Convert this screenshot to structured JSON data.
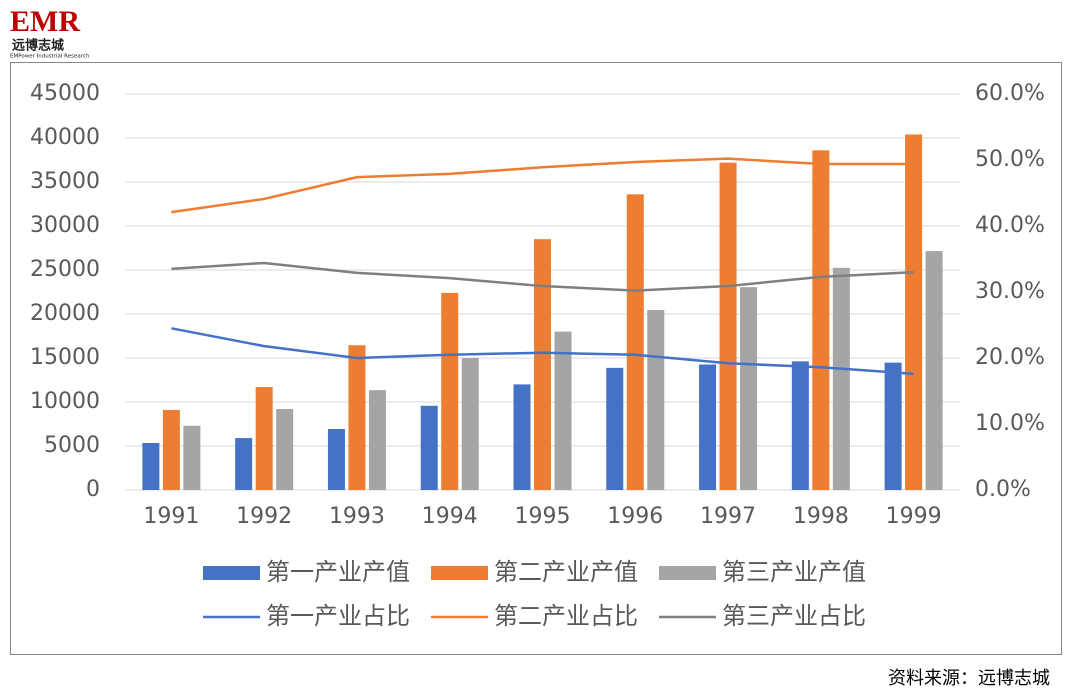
{
  "logo": {
    "brand": "EMR",
    "name": "远博志城",
    "tagline": "EMPower Industrial Research"
  },
  "source": "资料来源：远博志城",
  "chart_data": {
    "type": "bar-line",
    "categories": [
      "1991",
      "1992",
      "1993",
      "1994",
      "1995",
      "1996",
      "1997",
      "1998",
      "1999"
    ],
    "series": [
      {
        "name": "第一产业产值",
        "type": "bar",
        "color": "#4472c4",
        "values": [
          5340,
          5900,
          6930,
          9570,
          12000,
          13880,
          14260,
          14620,
          14470
        ]
      },
      {
        "name": "第二产业产值",
        "type": "bar",
        "color": "#ed7d31",
        "values": [
          9100,
          11700,
          16450,
          22400,
          28500,
          33600,
          37200,
          38600,
          40400
        ]
      },
      {
        "name": "第三产业产值",
        "type": "bar",
        "color": "#a5a5a5",
        "values": [
          7300,
          9200,
          11350,
          15000,
          18000,
          20450,
          23050,
          25250,
          27150
        ]
      },
      {
        "name": "第一产业占比",
        "type": "line",
        "axis": "y2",
        "color": "#4472c4",
        "values": [
          24.5,
          21.8,
          20.0,
          20.5,
          20.8,
          20.5,
          19.2,
          18.6,
          17.6
        ]
      },
      {
        "name": "第二产业占比",
        "type": "line",
        "axis": "y2",
        "color": "#ed7d31",
        "values": [
          42.1,
          44.1,
          47.4,
          47.9,
          48.9,
          49.7,
          50.2,
          49.4,
          49.4
        ]
      },
      {
        "name": "第三产业占比",
        "type": "line",
        "axis": "y2",
        "color": "#7f7f7f",
        "values": [
          33.5,
          34.4,
          32.9,
          32.1,
          30.9,
          30.2,
          30.9,
          32.3,
          33.0
        ]
      }
    ],
    "ylim": [
      0,
      45000
    ],
    "yticks": [
      0,
      5000,
      10000,
      15000,
      20000,
      25000,
      30000,
      35000,
      40000,
      45000
    ],
    "y2lim": [
      0,
      60
    ],
    "y2ticks": [
      {
        "value": 0,
        "label": "0.0%"
      },
      {
        "value": 10,
        "label": "10.0%"
      },
      {
        "value": 20,
        "label": "20.0%"
      },
      {
        "value": 30,
        "label": "30.0%"
      },
      {
        "value": 40,
        "label": "40.0%"
      },
      {
        "value": 50,
        "label": "50.0%"
      },
      {
        "value": 60,
        "label": "60.0%"
      }
    ],
    "grid": true,
    "legend": "bottom"
  }
}
